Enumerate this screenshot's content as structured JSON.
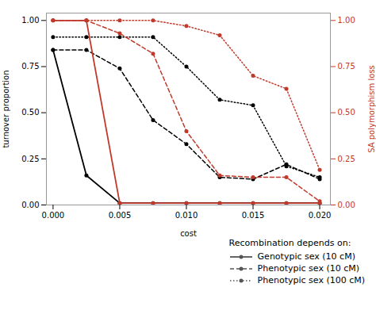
{
  "chart_data": {
    "type": "line",
    "xlabel": "cost",
    "ylabel": "turnover proportion",
    "y2label": "SA polymorphism loss",
    "legend_title": "Recombination depends on:",
    "legend": "lower right",
    "x": [
      0.0,
      0.0025,
      0.005,
      0.0075,
      0.01,
      0.0125,
      0.015,
      0.0175,
      0.02
    ],
    "series": [
      {
        "name": "Genotypic sex (10 cM)",
        "color": "#000000",
        "line_style": "solid",
        "marker": "o",
        "values": [
          0.84,
          0.16,
          0.01,
          0.01,
          0.01,
          0.01,
          0.01,
          0.01,
          0.01
        ]
      },
      {
        "name": "Phenotypic sex (10 cM)",
        "color": "#000000",
        "line_style": "dashed",
        "marker": "o",
        "values": [
          0.84,
          0.84,
          0.74,
          0.46,
          0.33,
          0.15,
          0.14,
          0.22,
          0.14
        ]
      },
      {
        "name": "Phenotypic sex (100 cM)",
        "color": "#000000",
        "line_style": "dotted",
        "marker": "o",
        "values": [
          0.91,
          0.91,
          0.91,
          0.91,
          0.75,
          0.57,
          0.54,
          0.21,
          0.15
        ]
      },
      {
        "name": "Genotypic sex (10 cM)",
        "color": "#c0392b",
        "line_style": "solid",
        "marker": "o",
        "axis": "y2",
        "values": [
          1.0,
          1.0,
          0.01,
          0.01,
          0.01,
          0.01,
          0.01,
          0.01,
          0.01
        ]
      },
      {
        "name": "Phenotypic sex (10 cM)",
        "color": "#c0392b",
        "line_style": "dashed",
        "marker": "o",
        "axis": "y2",
        "values": [
          1.0,
          1.0,
          0.93,
          0.82,
          0.4,
          0.16,
          0.15,
          0.15,
          0.02
        ]
      },
      {
        "name": "Phenotypic sex (100 cM)",
        "color": "#c0392b",
        "line_style": "dotted",
        "marker": "o",
        "axis": "y2",
        "values": [
          1.0,
          1.0,
          1.0,
          1.0,
          0.97,
          0.92,
          0.7,
          0.63,
          0.19
        ]
      }
    ],
    "xlim": [
      -0.0005,
      0.0208
    ],
    "xticks": [
      {
        "value": 0.0,
        "label": "0.000"
      },
      {
        "value": 0.005,
        "label": "0.005"
      },
      {
        "value": 0.01,
        "label": "0.010"
      },
      {
        "value": 0.015,
        "label": "0.015"
      },
      {
        "value": 0.02,
        "label": "0.020"
      }
    ],
    "ylim": [
      0.0,
      1.04
    ],
    "yticks": [
      {
        "value": 0.0,
        "label": "0.00"
      },
      {
        "value": 0.25,
        "label": "0.25"
      },
      {
        "value": 0.5,
        "label": "0.50"
      },
      {
        "value": 0.75,
        "label": "0.75"
      },
      {
        "value": 1.0,
        "label": "1.00"
      }
    ],
    "y2lim": [
      0.0,
      1.04
    ],
    "y2ticks": [
      {
        "value": 0.0,
        "label": "0.00"
      },
      {
        "value": 0.25,
        "label": "0.25"
      },
      {
        "value": 0.5,
        "label": "0.50"
      },
      {
        "value": 0.75,
        "label": "0.75"
      },
      {
        "value": 1.0,
        "label": "1.00"
      }
    ]
  }
}
